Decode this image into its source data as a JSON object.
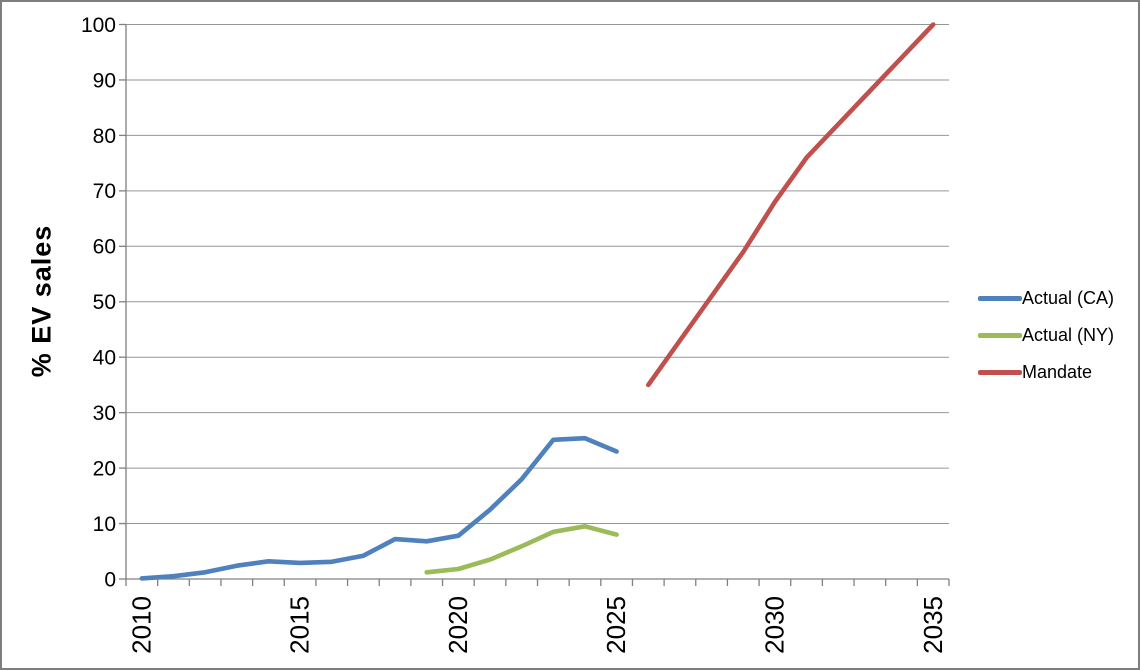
{
  "chart_data": {
    "type": "line",
    "title": "",
    "ylabel": "% EV sales",
    "xlabel": "",
    "ylim": [
      0,
      100
    ],
    "yticks": [
      0,
      10,
      20,
      30,
      40,
      50,
      60,
      70,
      80,
      90,
      100
    ],
    "x_range": [
      2010,
      2035
    ],
    "x_minor_tick_every": 1,
    "xtick_labels": [
      "2010",
      "2015",
      "2020",
      "2025",
      "2030",
      "2035"
    ],
    "xtick_label_years": [
      2010,
      2015,
      2020,
      2025,
      2030,
      2035
    ],
    "grid": true,
    "legend_position": "right",
    "series": [
      {
        "name": "Actual (CA)",
        "color": "#4F81BD",
        "x": [
          2010,
          2011,
          2012,
          2013,
          2014,
          2015,
          2016,
          2017,
          2018,
          2019,
          2020,
          2021,
          2022,
          2023,
          2024,
          2025
        ],
        "values": [
          0.1,
          0.5,
          1.2,
          2.4,
          3.2,
          2.9,
          3.1,
          4.2,
          7.2,
          6.8,
          7.8,
          12.5,
          18.0,
          25.1,
          25.4,
          23.0
        ]
      },
      {
        "name": "Actual (NY)",
        "color": "#9BBB59",
        "x": [
          2019,
          2020,
          2021,
          2022,
          2023,
          2024,
          2025
        ],
        "values": [
          1.2,
          1.8,
          3.5,
          5.9,
          8.5,
          9.5,
          8.0
        ]
      },
      {
        "name": "Mandate",
        "color": "#C0504D",
        "x": [
          2026,
          2027,
          2028,
          2029,
          2030,
          2031,
          2032,
          2033,
          2034,
          2035
        ],
        "values": [
          35,
          43,
          51,
          59,
          68,
          76,
          82,
          88,
          94,
          100
        ]
      }
    ]
  }
}
